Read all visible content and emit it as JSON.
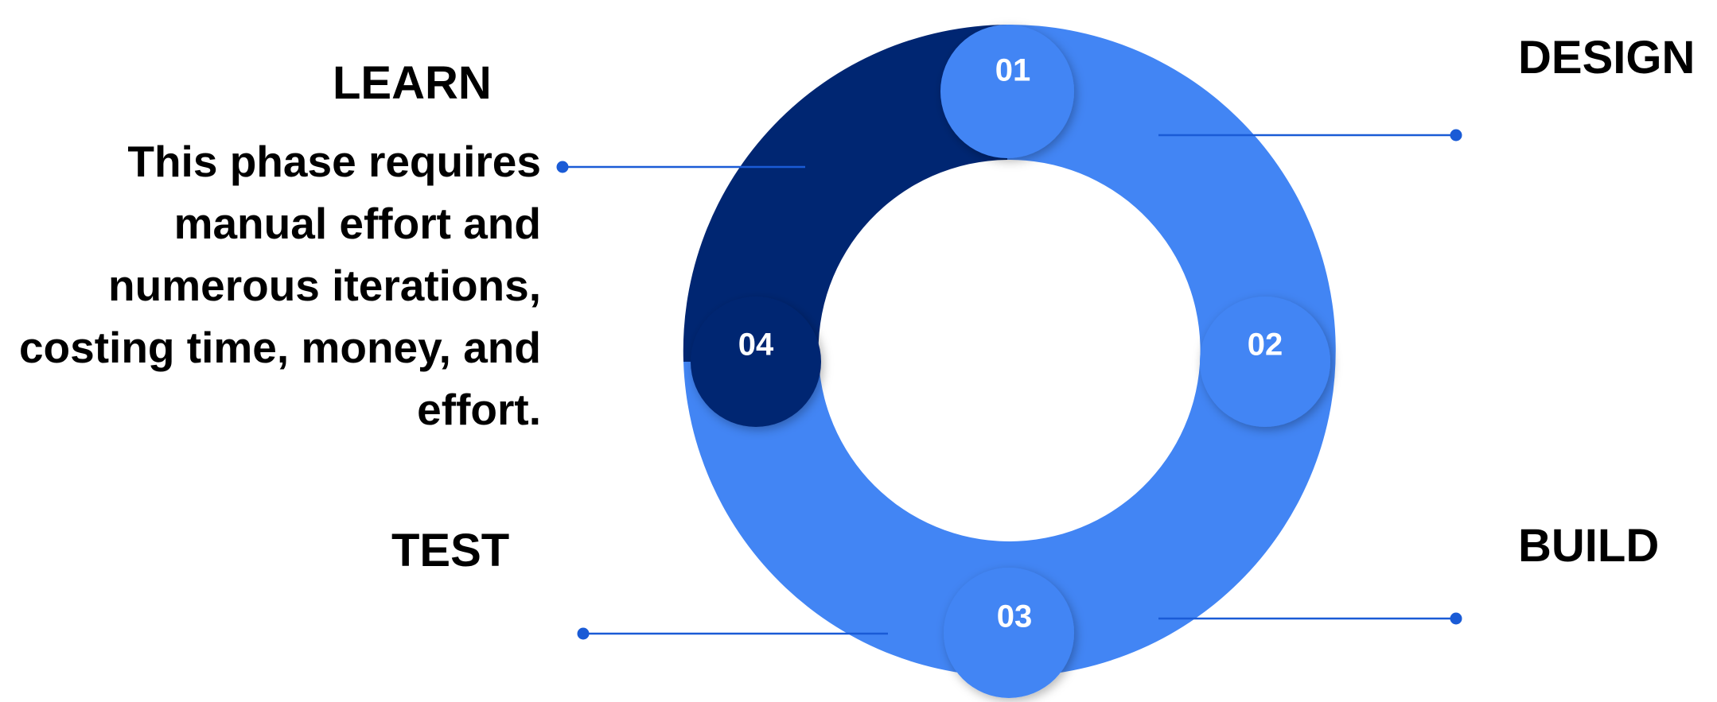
{
  "colors": {
    "light_blue": "#4285F4",
    "dark_navy": "#002672",
    "connector": "#1a5bd6",
    "text": "#000000",
    "number_text": "#ffffff"
  },
  "steps": [
    {
      "number": "01",
      "title": "DESIGN",
      "description": ""
    },
    {
      "number": "02",
      "title": "BUILD",
      "description": ""
    },
    {
      "number": "03",
      "title": "TEST",
      "description": ""
    },
    {
      "number": "04",
      "title": "LEARN",
      "description": "This phase requires manual effort and numerous iterations, costing time, money, and effort."
    }
  ]
}
